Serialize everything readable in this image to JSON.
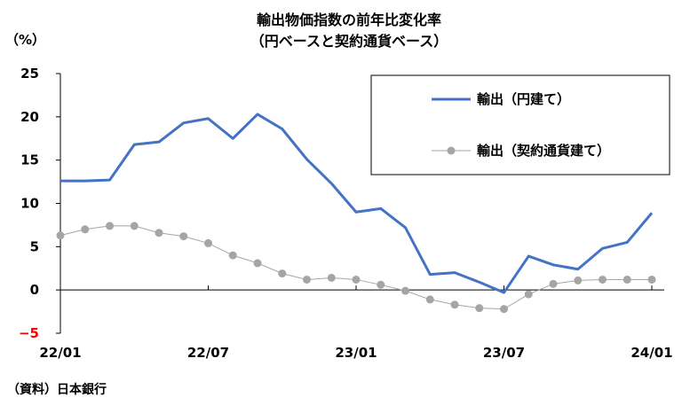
{
  "chart_data": {
    "type": "line",
    "title": "輸出物価指数の前年比変化率",
    "subtitle": "（円ベースと契約通貨ベース）",
    "ylabel": "（%）",
    "source": "（資料）日本銀行",
    "ylim": [
      -5,
      25
    ],
    "yticks": [
      "25",
      "20",
      "15",
      "10",
      "5",
      "0",
      "−5"
    ],
    "ytick_values": [
      25,
      20,
      15,
      10,
      5,
      0,
      -5
    ],
    "xtick_labels": [
      "22/01",
      "22/07",
      "23/01",
      "23/07",
      "24/01"
    ],
    "xtick_index": [
      0,
      6,
      12,
      18,
      24
    ],
    "x_month_count": 25,
    "grid": false,
    "legend_position": "top-right",
    "series": [
      {
        "name": "輸出（円建て）",
        "color": "#4472c4",
        "values": [
          12.6,
          12.6,
          12.7,
          16.8,
          17.1,
          19.3,
          19.8,
          17.5,
          20.3,
          18.6,
          15.1,
          12.3,
          9.0,
          9.4,
          7.2,
          1.8,
          2.0,
          0.9,
          -0.3,
          3.9,
          2.9,
          2.4,
          4.8,
          5.5,
          8.9
        ]
      },
      {
        "name": "輸出（契約通貨建て）",
        "color": "#a5a5a5",
        "values": [
          6.3,
          7.0,
          7.4,
          7.4,
          6.6,
          6.2,
          5.4,
          4.0,
          3.1,
          1.9,
          1.2,
          1.4,
          1.2,
          0.6,
          -0.1,
          -1.1,
          -1.7,
          -2.1,
          -2.2,
          -0.5,
          0.7,
          1.1,
          1.2,
          1.2,
          1.2
        ]
      }
    ],
    "negative_tick_color": "#ff0000"
  }
}
